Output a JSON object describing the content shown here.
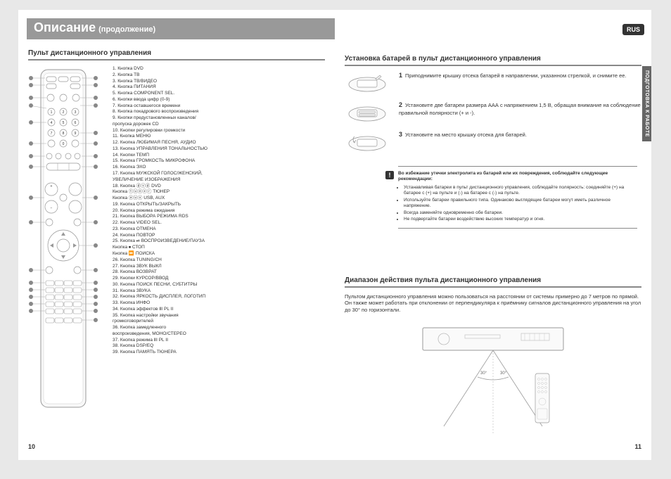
{
  "title": "Описание",
  "subtitle": "(продолжение)",
  "rus_label": "RUS",
  "side_tab": "ПОДГОТОВКА К РАБОТЕ",
  "section1": "Пульт дистанционного управления",
  "section2": "Установка батарей в пульт дистанционного управления",
  "section3": "Диапазон действия пульта дистанционного управления",
  "buttons": [
    "1. Кнопка DVD",
    "2. Кнопка ТВ",
    "3. Кнопка ТВ/ВИДЕО",
    "4. Кнопка ПИТАНИЯ",
    "5. Кнопка COMPONENT SEL.",
    "6. Кнопки ввода цифр (0-9)",
    "7. Кнопка оставшегося времени",
    "8. Кнопка покадрового воспроизведения",
    "9. Кнопки предустановленных каналов/",
    "    пропуска дорожек CD",
    "10. Кнопки регулировки громкости",
    "11. Кнопка МЕНЮ",
    "12. Кнопка ЛЮБИМАЯ ПЕСНЯ, АУДИО",
    "13. Кнопка УПРАВЛЕНИЯ ТОНАЛЬНОСТЬЮ",
    "14. Кнопки ТЕМП",
    "15. Кнопка ГРОМКОСТЬ МИКРОФОНА",
    "16. Кнопка ЭХО",
    "17. Кнопка МУЖСКОЙ ГОЛОС/ЖЕНСКИЙ,",
    "    УВЕЛИЧЕНИЕ ИЗОБРАЖЕНИЯ",
    "18. Кнопка ⓓⓥⓓ DVD",
    "    Кнопка ⓣⓤⓝⓔⓡ ТЮНЕР",
    "    Кнопка ⓐⓤⓧ USB, AUX",
    "19. Кнопка ОТКРЫТЬ/ЗАКРЫТЬ",
    "20. Кнопка режима ожидания",
    "21. Кнопка ВЫБОРА РЕЖИМА RDS",
    "22. Кнопка VIDEO SEL.",
    "23. Кнопка ОТМЕНА",
    "24. Кнопка ПОВТОР",
    "25. Кнопка ⏯ ВОСПРОИЗВЕДЕНИЕ/ПАУЗА",
    "    Кнопка ⏹ СТОП",
    "    Кнопка ⏩ ПОИСКА",
    "26. Кнопка TUNING/CH",
    "27. Кнопка ЗВУК ВЫКЛ",
    "28. Кнопка ВОЗВРАТ",
    "29. Кнопки КУРСОР/ВВОД",
    "30. Кнопка ПОИСК ПЕСНИ, СУБТИТРЫ",
    "31. Кнопка ЗВУКА",
    "32. Кнопка ЯРКОСТЬ ДИСПЛЕЯ, ЛОГОТИП",
    "33. Кнопка ИНФО",
    "34. Кнопка эффектов ⅡⅠ PL ⅠⅠ",
    "35. Кнопка настройки звучания",
    "    громкоговорителей",
    "36. Кнопка замедленного",
    "    воспроизведения, МОНО/СТЕРЕО",
    "37. Кнопка режима ⅡⅠ PL ⅠⅠ",
    "38. Кнопка DSP/EQ",
    "39. Кнопка ПАМЯТЬ ТЮНЕРА"
  ],
  "install_steps": [
    {
      "num": "1",
      "text": "Приподнимите крышку отсека батарей в направлении, указанном стрелкой, и снимите ее."
    },
    {
      "num": "2",
      "text": "Установите две батареи размера ААА с напряжением 1,5 В, обращая внимание на соблюдение правильной полярности (+ и -)."
    },
    {
      "num": "3",
      "text": "Установите на место крышку отсека для батарей."
    }
  ],
  "warn_title": "Во избежание утечки электролита из батарей или их повреждения, соблюдайте следующие рекомендации:",
  "warn_items": [
    "Устанавливая батареи в пульт дистанционного управления, соблюдайте полярность: соединяйте (+) на батарее с (+) на пульте и (-) на батарее с (-) на пульте.",
    "Используйте батареи правильного типа. Одинаково выглядящие батареи могут иметь различное напряжение.",
    "Всегда заменяйте одновременно обе батареи.",
    "Не подвергайте батареи воздействию высоких температур и огня."
  ],
  "range_text": "Пультом дистанционного управления можно пользоваться на расстоянии от системы примерно до 7 метров по прямой. Он также может работать при отклонении от перпендикуляра к приёмнику сигналов дистанционного управления на угол до 30° по горизонтали.",
  "page_left": "10",
  "page_right": "11"
}
